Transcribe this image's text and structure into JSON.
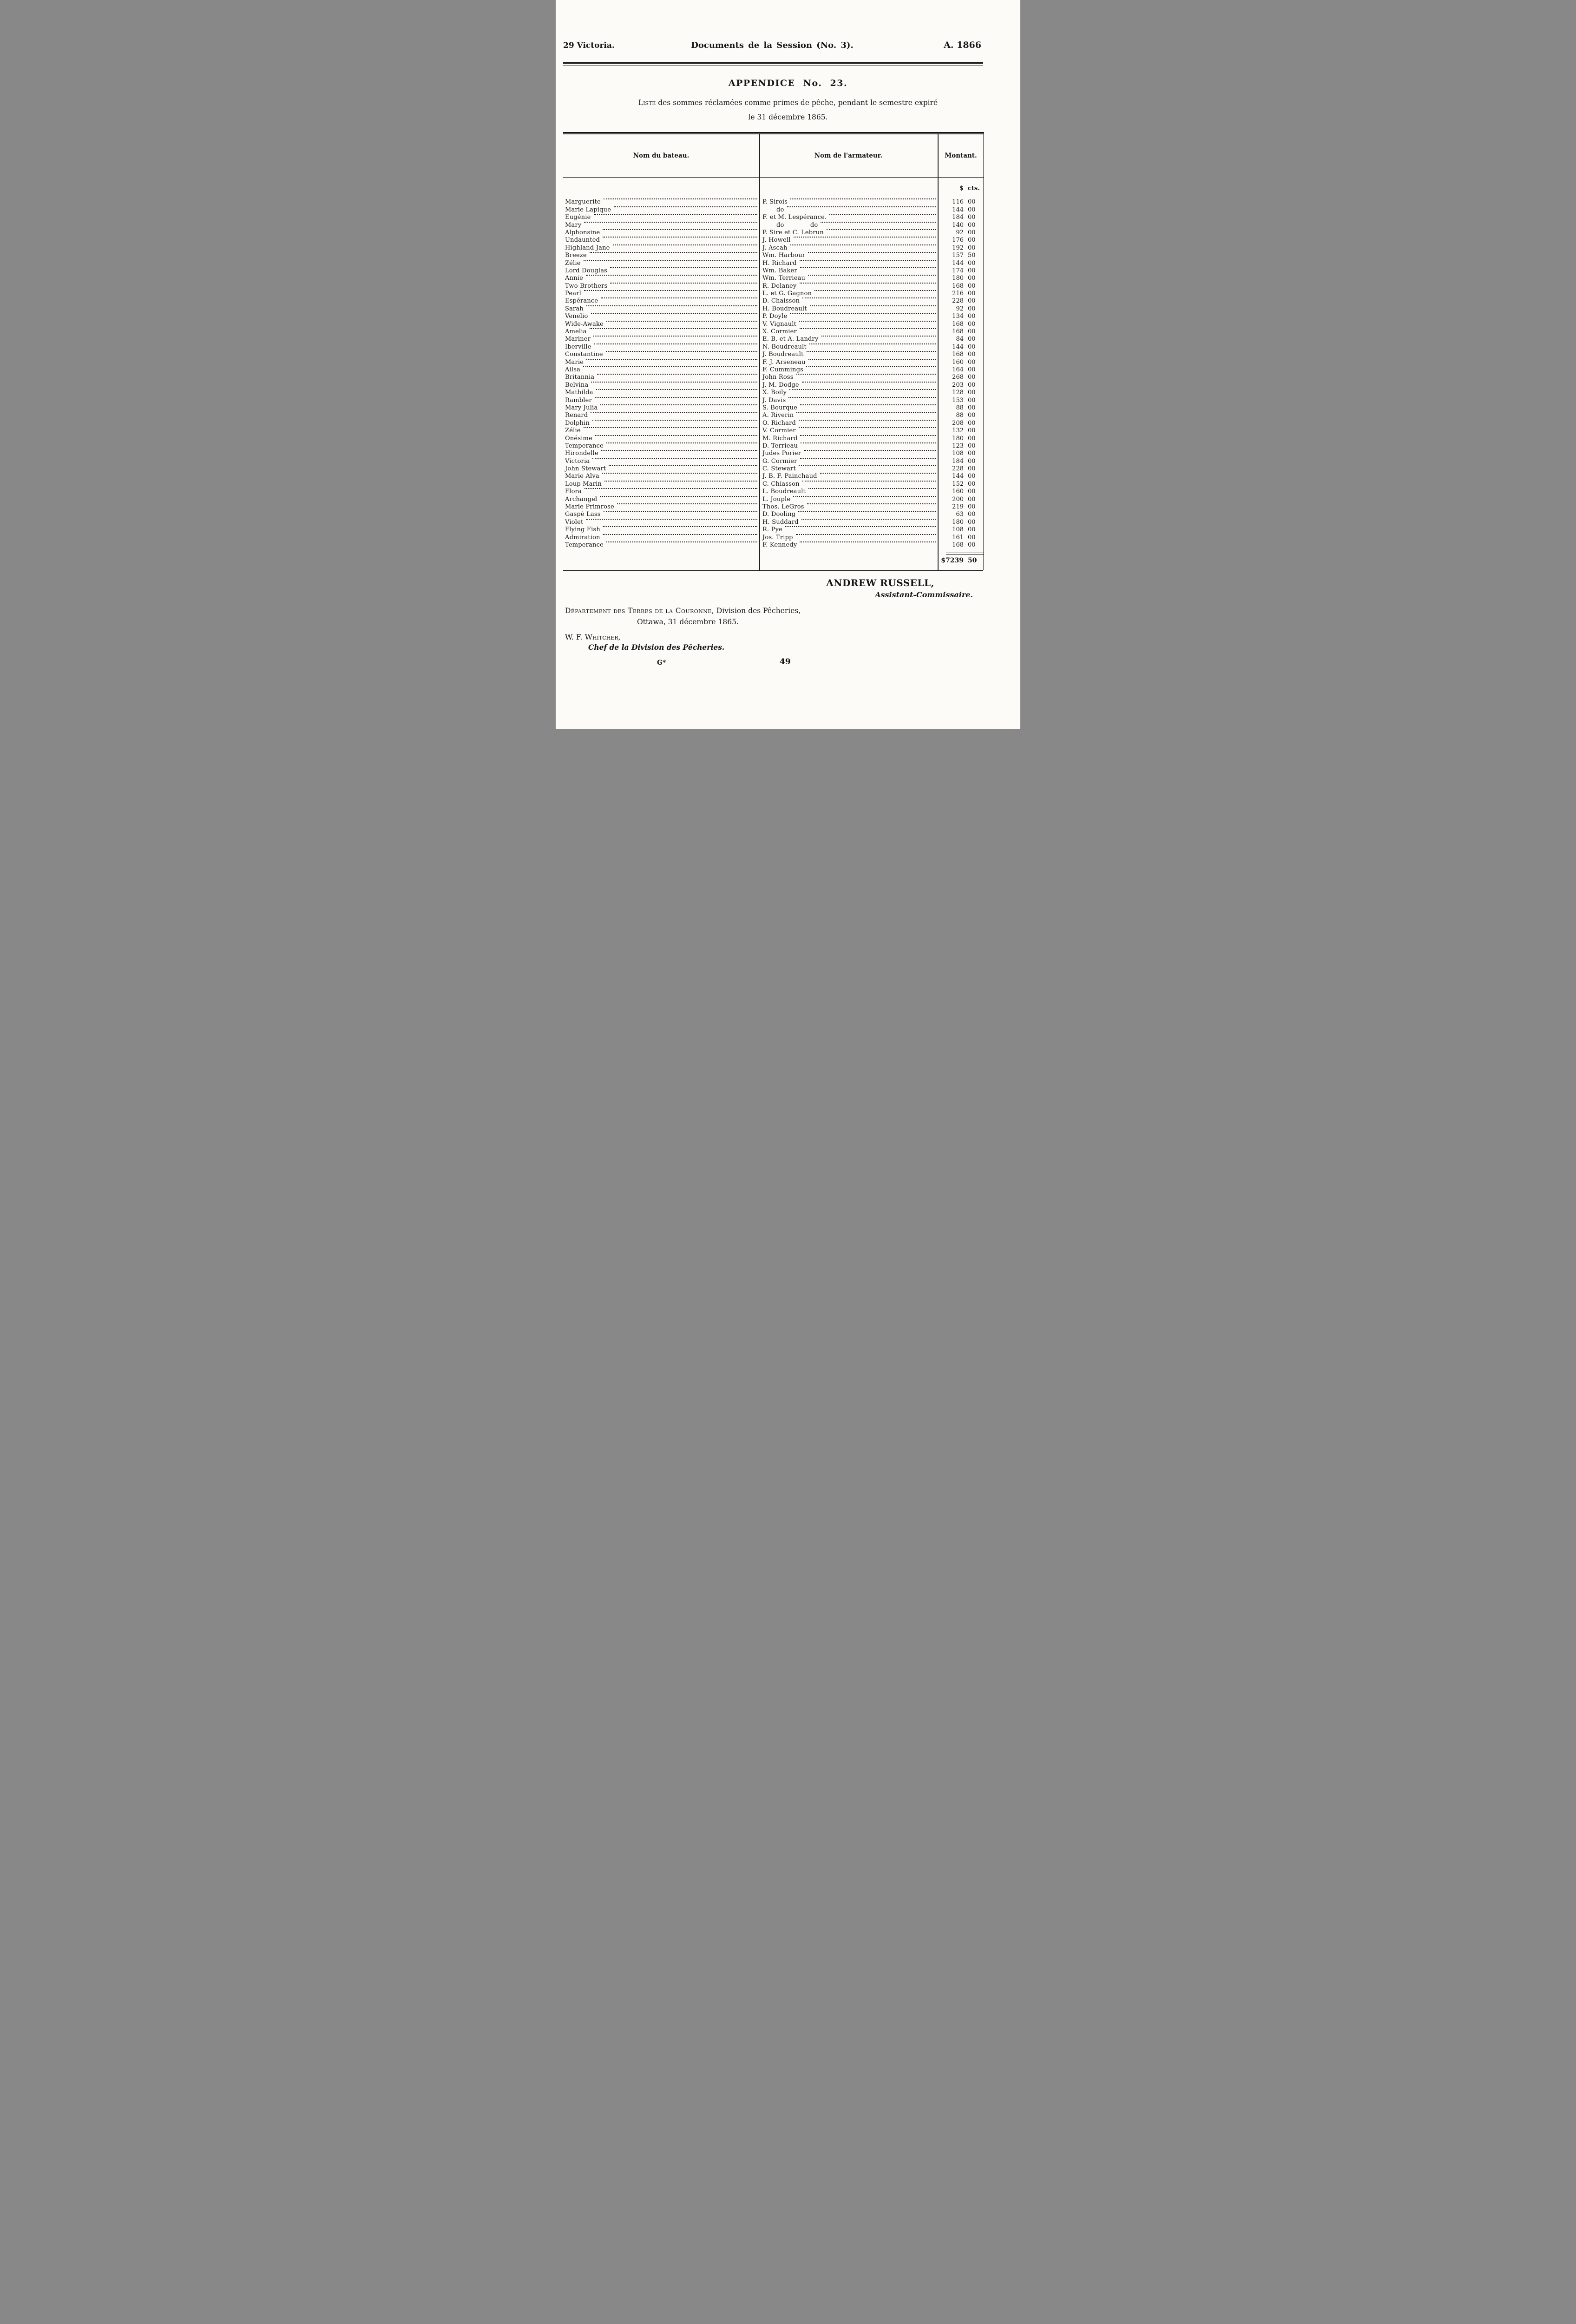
{
  "page_header": {
    "left": "29 Victoria.",
    "center": "Documents de la Session (No. 3).",
    "right": "A. 1866"
  },
  "title": "APPENDICE No. 23.",
  "subtitle": {
    "lead_word": "Liste",
    "line1_rest": " des sommes réclamées comme primes de pêche, pendant le semestre expiré",
    "line2": "le 31 décembre 1865."
  },
  "table": {
    "columns": [
      "Nom du bateau.",
      "Nom de l'armateur.",
      "Montant."
    ],
    "currency_header": {
      "dollars": "$",
      "cents": "cts."
    },
    "rows": [
      {
        "boat": "Marguerite",
        "owner": "P. Sirois",
        "dollars": "116",
        "cents": "00"
      },
      {
        "boat": "Marie Lapique",
        "owner": "do",
        "dollars": "144",
        "cents": "00"
      },
      {
        "boat": "Eugénie",
        "owner": "F. et M. Lespérance.",
        "dollars": "184",
        "cents": "00"
      },
      {
        "boat": "Mary",
        "owner": "do             do",
        "dollars": "140",
        "cents": "00"
      },
      {
        "boat": "Alphonsine",
        "owner": "P. Sire et C. Lebrun",
        "dollars": "92",
        "cents": "00"
      },
      {
        "boat": "Undaunted",
        "owner": "J. Howell",
        "dollars": "176",
        "cents": "00"
      },
      {
        "boat": "Highland Jane",
        "owner": "J. Ascah",
        "dollars": "192",
        "cents": "00"
      },
      {
        "boat": "Breeze",
        "owner": "Wm. Harbour",
        "dollars": "157",
        "cents": "50"
      },
      {
        "boat": "Zélie",
        "owner": "H. Richard",
        "dollars": "144",
        "cents": "00"
      },
      {
        "boat": "Lord Douglas",
        "owner": "Wm. Baker",
        "dollars": "174",
        "cents": "00"
      },
      {
        "boat": "Annie",
        "owner": "Wm. Terrieau",
        "dollars": "180",
        "cents": "00"
      },
      {
        "boat": "Two Brothers",
        "owner": "R. Delaney",
        "dollars": "168",
        "cents": "00"
      },
      {
        "boat": "Pearl",
        "owner": "L. et G. Gagnon",
        "dollars": "216",
        "cents": "00"
      },
      {
        "boat": "Espérance",
        "owner": "D. Chaisson",
        "dollars": "228",
        "cents": "00"
      },
      {
        "boat": "Sarah",
        "owner": "H. Boudreault",
        "dollars": "92",
        "cents": "00"
      },
      {
        "boat": "Venelio",
        "owner": "P. Doyle",
        "dollars": "134",
        "cents": "00"
      },
      {
        "boat": "Wide-Awake",
        "owner": "V. Vignault",
        "dollars": "168",
        "cents": "00"
      },
      {
        "boat": "Amelia",
        "owner": "X. Cormier",
        "dollars": "168",
        "cents": "00"
      },
      {
        "boat": "Mariner",
        "owner": "E. B. et A. Landry",
        "dollars": "84",
        "cents": "00"
      },
      {
        "boat": "Iberville",
        "owner": "N. Boudreault",
        "dollars": "144",
        "cents": "00"
      },
      {
        "boat": "Constantine",
        "owner": "J. Boudreault",
        "dollars": "168",
        "cents": "00"
      },
      {
        "boat": "Marie",
        "owner": "F. J. Arseneau",
        "dollars": "160",
        "cents": "00"
      },
      {
        "boat": "Ailsa",
        "owner": "F. Cummings",
        "dollars": "164",
        "cents": "00"
      },
      {
        "boat": "Britannia",
        "owner": "John Ross",
        "dollars": "268",
        "cents": "00"
      },
      {
        "boat": "Belvina",
        "owner": "J. M. Dodge",
        "dollars": "203",
        "cents": "00"
      },
      {
        "boat": "Mathilda",
        "owner": "X. Boily",
        "dollars": "128",
        "cents": "00"
      },
      {
        "boat": "Rambler",
        "owner": "J. Davis",
        "dollars": "153",
        "cents": "00"
      },
      {
        "boat": "Mary Julia",
        "owner": "S. Bourque",
        "dollars": "88",
        "cents": "00"
      },
      {
        "boat": "Renard",
        "owner": "A. Riverin",
        "dollars": "88",
        "cents": "00"
      },
      {
        "boat": "Dolphin",
        "owner": "O. Richard",
        "dollars": "208",
        "cents": "00"
      },
      {
        "boat": "Zélie",
        "owner": "V. Cormier",
        "dollars": "132",
        "cents": "00"
      },
      {
        "boat": "Onésime",
        "owner": "M. Richard",
        "dollars": "180",
        "cents": "00"
      },
      {
        "boat": "Temperance",
        "owner": "D. Terrieau",
        "dollars": "123",
        "cents": "00"
      },
      {
        "boat": "Hirondelle",
        "owner": "Judes Porier",
        "dollars": "108",
        "cents": "00"
      },
      {
        "boat": "Victoria",
        "owner": "G. Cormier",
        "dollars": "184",
        "cents": "00"
      },
      {
        "boat": "John Stewart",
        "owner": "C. Stewart",
        "dollars": "228",
        "cents": "00"
      },
      {
        "boat": "Marie Alva",
        "owner": "J. B. F. Painchaud",
        "dollars": "144",
        "cents": "00"
      },
      {
        "boat": "Loup Marin",
        "owner": "C. Chiasson",
        "dollars": "152",
        "cents": "00"
      },
      {
        "boat": "Flora",
        "owner": "L. Boudreault",
        "dollars": "160",
        "cents": "00"
      },
      {
        "boat": "Archangel",
        "owner": "L. Jouple",
        "dollars": "200",
        "cents": "00"
      },
      {
        "boat": "Marie Primrose",
        "owner": "Thos. LeGros",
        "dollars": "219",
        "cents": "00"
      },
      {
        "boat": "Gaspé Lass",
        "owner": "D. Dooling",
        "dollars": "63",
        "cents": "00"
      },
      {
        "boat": "Violet",
        "owner": "H. Suddard",
        "dollars": "180",
        "cents": "00"
      },
      {
        "boat": "Flying Fish",
        "owner": "R. Pye",
        "dollars": "108",
        "cents": "00"
      },
      {
        "boat": "Admiration",
        "owner": "Jos. Tripp",
        "dollars": "161",
        "cents": "00"
      },
      {
        "boat": "Temperance",
        "owner": "F. Kennedy",
        "dollars": "168",
        "cents": "00"
      }
    ],
    "total": {
      "dollars": "$7239",
      "cents": "50"
    }
  },
  "signature": {
    "name": "ANDREW RUSSELL,",
    "title": "Assistant-Commissaire."
  },
  "department": {
    "line1_smallcaps": "Département des Terres de la Couronne,",
    "line1_rest": " Division des Pêcheries,",
    "line2": "Ottawa, 31 décembre 1865."
  },
  "officer": {
    "name": "W. F. Whitcher,",
    "title": "Chef de la Division des Pêcheries."
  },
  "footer": {
    "printers_mark": "G*",
    "page_number": "49"
  }
}
